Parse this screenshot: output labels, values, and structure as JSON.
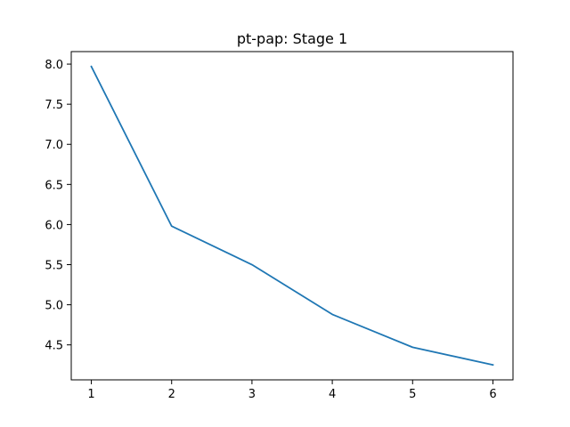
{
  "chart_data": {
    "type": "line",
    "title": "pt-pap: Stage 1",
    "xlabel": "",
    "ylabel": "",
    "x": [
      1,
      2,
      3,
      4,
      5,
      6
    ],
    "series": [
      {
        "values": [
          7.97,
          5.98,
          5.5,
          4.88,
          4.47,
          4.25
        ],
        "color": "#1f77b4"
      }
    ],
    "xlim": [
      0.75,
      6.25
    ],
    "ylim": [
      4.064,
      8.156
    ],
    "xticks": [
      1,
      2,
      3,
      4,
      5,
      6
    ],
    "xtick_labels": [
      "1",
      "2",
      "3",
      "4",
      "5",
      "6"
    ],
    "yticks": [
      4.5,
      5.0,
      5.5,
      6.0,
      6.5,
      7.0,
      7.5,
      8.0
    ],
    "ytick_labels": [
      "4.5",
      "5.0",
      "5.5",
      "6.0",
      "6.5",
      "7.0",
      "7.5",
      "8.0"
    ],
    "grid": false,
    "legend": "none"
  }
}
